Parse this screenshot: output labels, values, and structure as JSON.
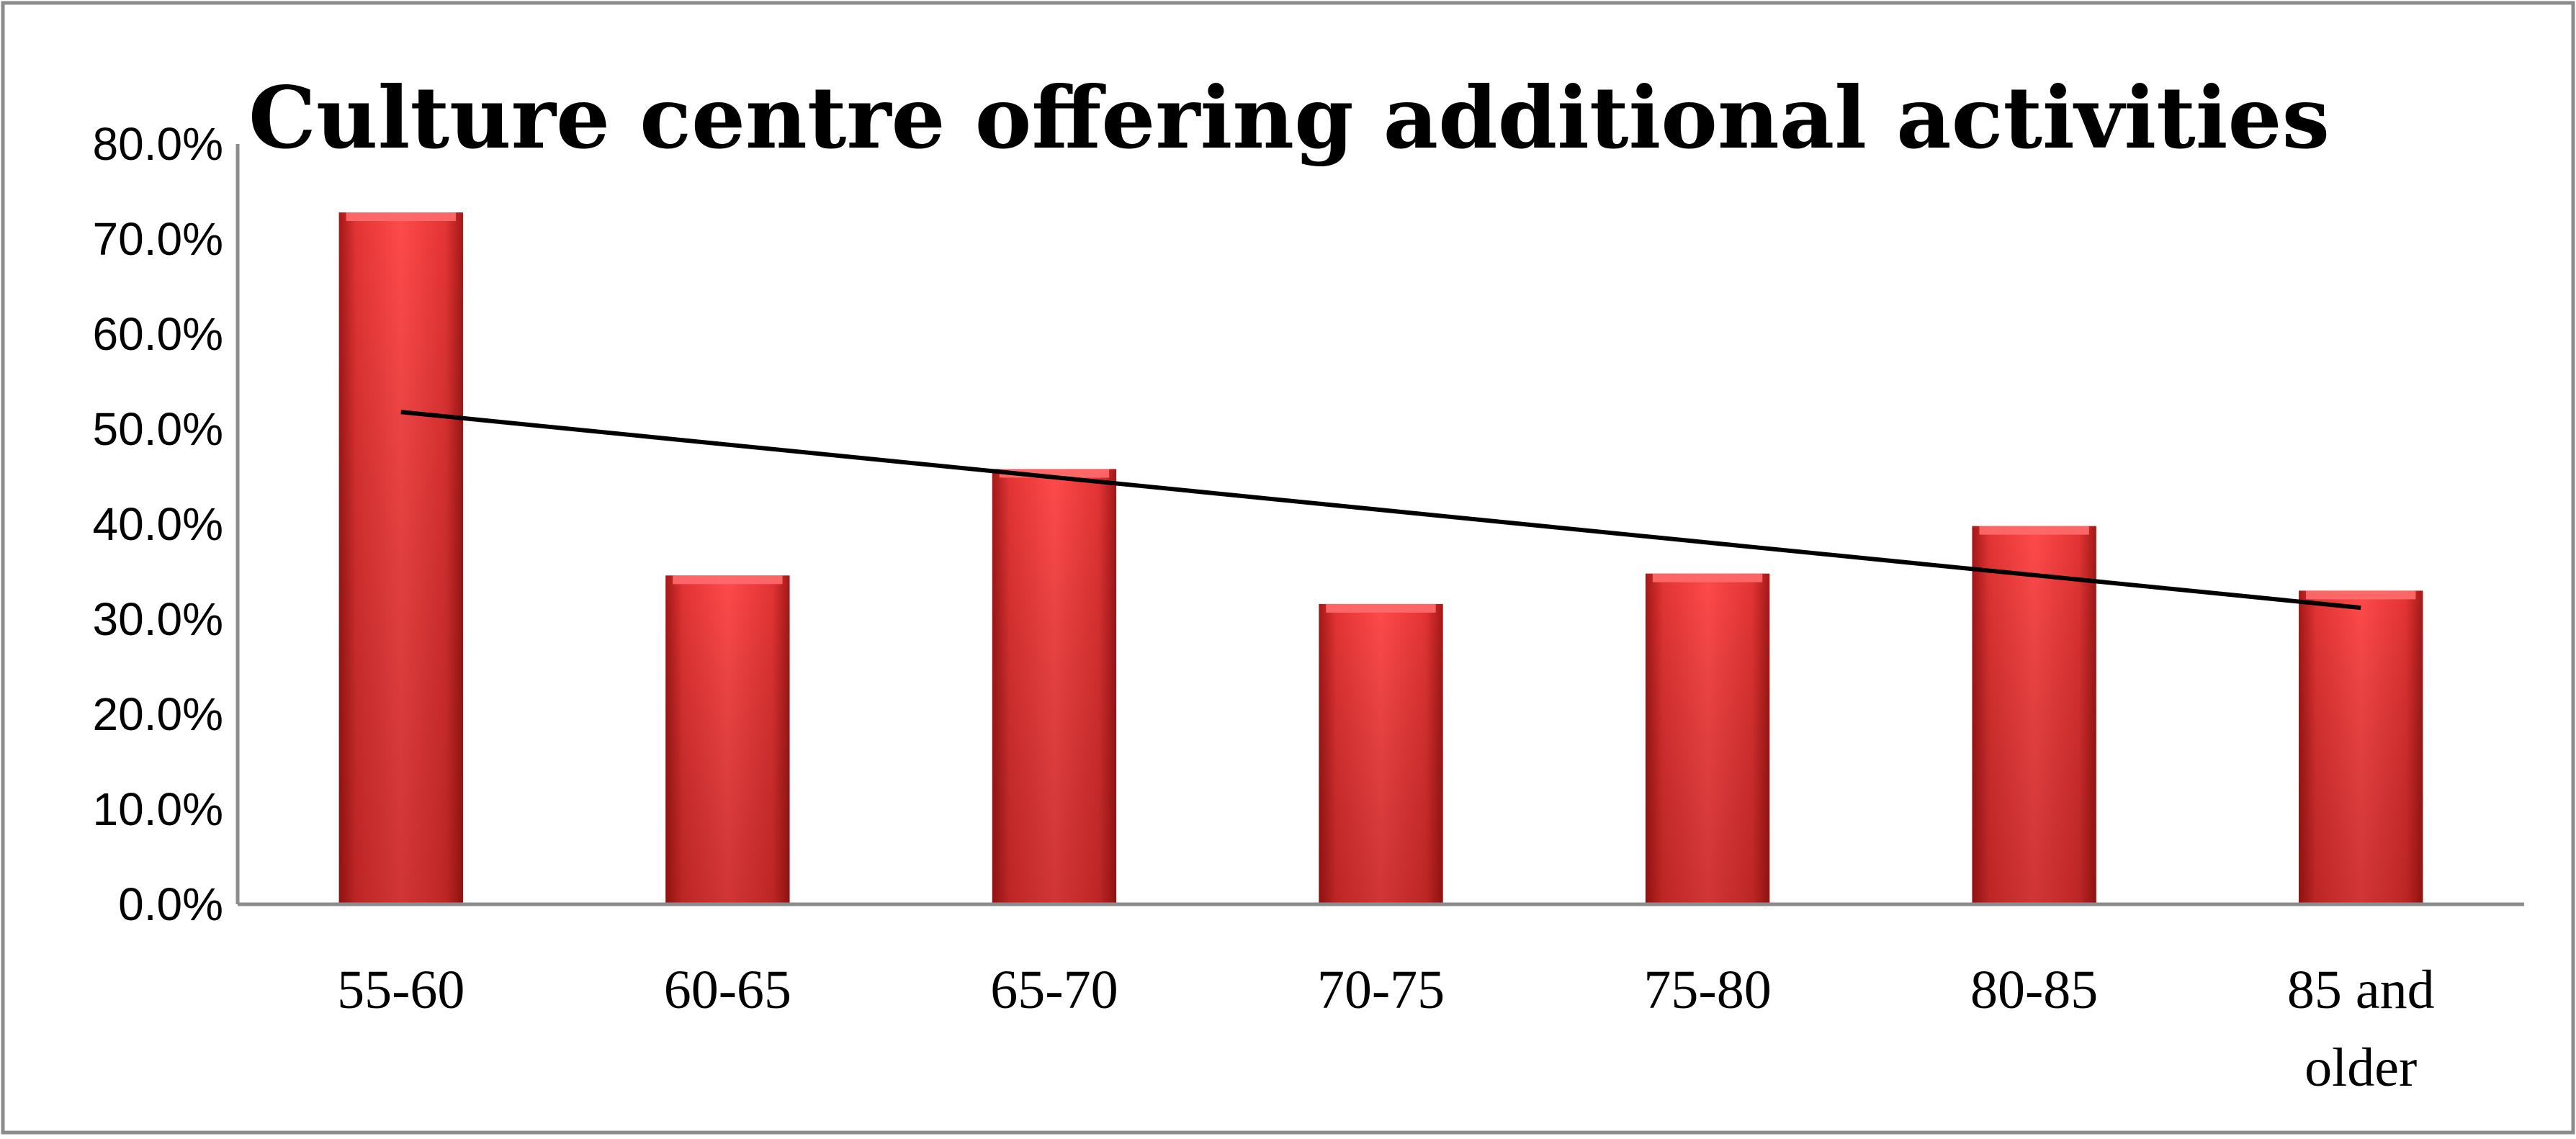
{
  "chart_data": {
    "type": "bar",
    "title": "Culture centre offering additional activities",
    "categories": [
      "55-60",
      "60-65",
      "65-70",
      "70-75",
      "75-80",
      "80-85",
      "85 and older"
    ],
    "values": [
      72.8,
      34.6,
      45.8,
      31.6,
      34.8,
      39.8,
      33.0
    ],
    "ylim": [
      0,
      80
    ],
    "yticks": [
      "0.0%",
      "10.0%",
      "20.0%",
      "30.0%",
      "40.0%",
      "50.0%",
      "60.0%",
      "70.0%",
      "80.0%"
    ],
    "bar_color": "#e33a3a",
    "trendline": {
      "type": "linear",
      "start": 51.8,
      "end": 31.2,
      "color": "#000000"
    },
    "grid": false,
    "legend": "none"
  }
}
